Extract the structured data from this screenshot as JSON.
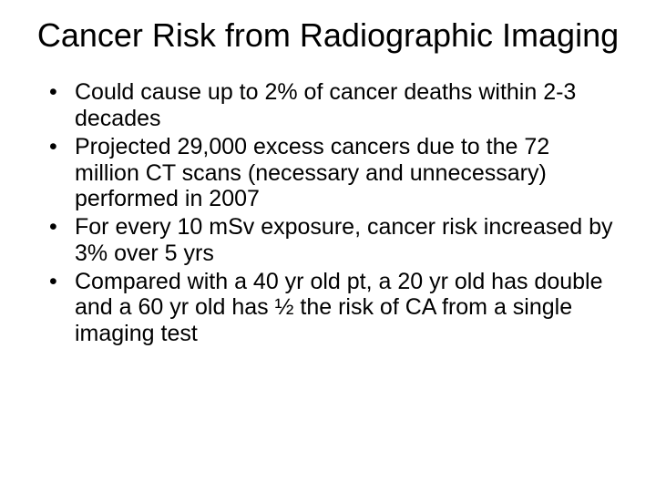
{
  "slide": {
    "title": "Cancer Risk from Radiographic Imaging",
    "bullets": [
      "Could cause up to 2% of cancer deaths within 2-3 decades",
      "Projected 29,000 excess cancers due to the 72 million CT scans (necessary and unnecessary) performed in 2007",
      "For every 10 mSv exposure, cancer risk increased by 3% over 5 yrs",
      "Compared with a 40 yr old pt, a 20 yr old has double and a 60 yr old has ½ the risk of CA from a single imaging test"
    ]
  },
  "styling": {
    "background_color": "#ffffff",
    "text_color": "#000000",
    "title_fontsize": 36,
    "body_fontsize": 25,
    "font_family": "Arial"
  }
}
